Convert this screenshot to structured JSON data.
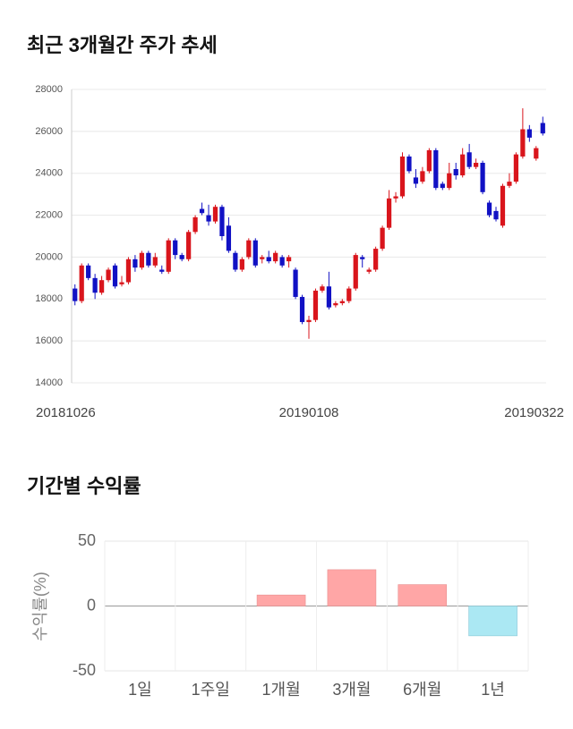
{
  "chart_data": [
    {
      "type": "candlestick",
      "title": "최근 3개월간 주가 추세",
      "categories": [
        "20181026",
        null,
        null,
        null,
        null,
        null,
        null,
        null,
        null,
        null,
        null,
        null,
        null,
        null,
        null,
        null,
        null,
        null,
        null,
        null,
        null,
        null,
        null,
        null,
        null,
        null,
        null,
        null,
        null,
        null,
        null,
        null,
        null,
        null,
        null,
        "20190108",
        null,
        null,
        null,
        null,
        null,
        null,
        null,
        null,
        null,
        null,
        null,
        null,
        null,
        null,
        null,
        null,
        null,
        null,
        null,
        null,
        null,
        null,
        null,
        null,
        null,
        null,
        null,
        null,
        null,
        null,
        null,
        null,
        null,
        null,
        "20190322"
      ],
      "open": [
        18500,
        17900,
        19600,
        19000,
        18300,
        18900,
        19600,
        18700,
        18800,
        19900,
        19500,
        20200,
        19600,
        19400,
        19300,
        20800,
        20100,
        19900,
        21200,
        22300,
        22000,
        21700,
        22400,
        21500,
        20200,
        19400,
        20000,
        20800,
        19900,
        20000,
        19800,
        20000,
        19800,
        19400,
        18100,
        16900,
        17000,
        18400,
        18600,
        17700,
        17800,
        17900,
        18500,
        20000,
        19300,
        19400,
        20400,
        21400,
        22800,
        22900,
        24800,
        23800,
        23600,
        24100,
        25100,
        23500,
        23300,
        24200,
        23900,
        25000,
        24300,
        24500,
        22600,
        22200,
        21500,
        23400,
        23600,
        24800,
        26100,
        24700,
        26400
      ],
      "high": [
        18700,
        19700,
        19700,
        19200,
        19100,
        19500,
        19700,
        19100,
        20000,
        20100,
        20300,
        20300,
        20200,
        19600,
        20900,
        20900,
        20200,
        21300,
        22000,
        22600,
        22500,
        22500,
        22500,
        21900,
        20300,
        20000,
        20900,
        20900,
        20100,
        20300,
        20300,
        20100,
        20100,
        19500,
        18200,
        17200,
        18500,
        18700,
        19300,
        17900,
        18000,
        18600,
        20200,
        20100,
        19500,
        20500,
        21500,
        23200,
        23100,
        25000,
        24900,
        24200,
        24300,
        25200,
        25200,
        23600,
        24500,
        24500,
        25200,
        25400,
        24700,
        24600,
        22700,
        22400,
        23500,
        24000,
        25000,
        27100,
        26300,
        25300,
        26700
      ],
      "low": [
        17700,
        17800,
        18900,
        18000,
        18200,
        18800,
        18500,
        18600,
        18700,
        19300,
        19400,
        19500,
        19500,
        19200,
        19200,
        19900,
        19800,
        19800,
        21100,
        22000,
        21500,
        21600,
        20800,
        20200,
        19300,
        19300,
        19900,
        19500,
        19700,
        19700,
        19700,
        19500,
        19500,
        18000,
        16800,
        16100,
        16900,
        18300,
        17500,
        17600,
        17700,
        17800,
        18400,
        19500,
        19200,
        19300,
        20300,
        21300,
        22600,
        22800,
        24000,
        23300,
        23500,
        24000,
        23200,
        23200,
        23200,
        23700,
        23800,
        24200,
        24200,
        23000,
        21900,
        21700,
        21400,
        23300,
        23500,
        24700,
        25500,
        24600,
        25800
      ],
      "close": [
        17900,
        19600,
        19000,
        18300,
        18900,
        19400,
        18600,
        18800,
        19900,
        19500,
        20200,
        19600,
        20000,
        19300,
        20800,
        20100,
        19900,
        21200,
        21900,
        22100,
        21700,
        22400,
        21000,
        20300,
        19400,
        19900,
        20800,
        19600,
        20000,
        19800,
        20200,
        19600,
        20000,
        18100,
        16900,
        17000,
        18400,
        18600,
        17600,
        17800,
        17900,
        18500,
        20100,
        19900,
        19400,
        20400,
        21400,
        22800,
        22900,
        24800,
        24100,
        23500,
        24100,
        25100,
        23300,
        23300,
        24000,
        23900,
        24900,
        24300,
        24500,
        23100,
        22000,
        21800,
        23400,
        23600,
        24900,
        26100,
        25700,
        25200,
        25900
      ],
      "up_color": "#d9151c",
      "down_color": "#1111c4",
      "ylim": [
        14000,
        28000
      ],
      "yticks": [
        14000,
        16000,
        18000,
        20000,
        22000,
        24000,
        26000,
        28000
      ],
      "grid": true
    },
    {
      "type": "bar",
      "title": "기간별 수익률",
      "y_label": "수익률(%)",
      "categories": [
        "1일",
        "1주일",
        "1개월",
        "3개월",
        "6개월",
        "1년"
      ],
      "values": [
        0,
        0,
        8.5,
        28,
        16.5,
        -23
      ],
      "positive_color": "#ffa6a6",
      "negative_color": "#abe8f3",
      "ylim": [
        -50,
        50
      ],
      "yticks": [
        -50,
        0,
        50
      ],
      "grid": true
    }
  ]
}
